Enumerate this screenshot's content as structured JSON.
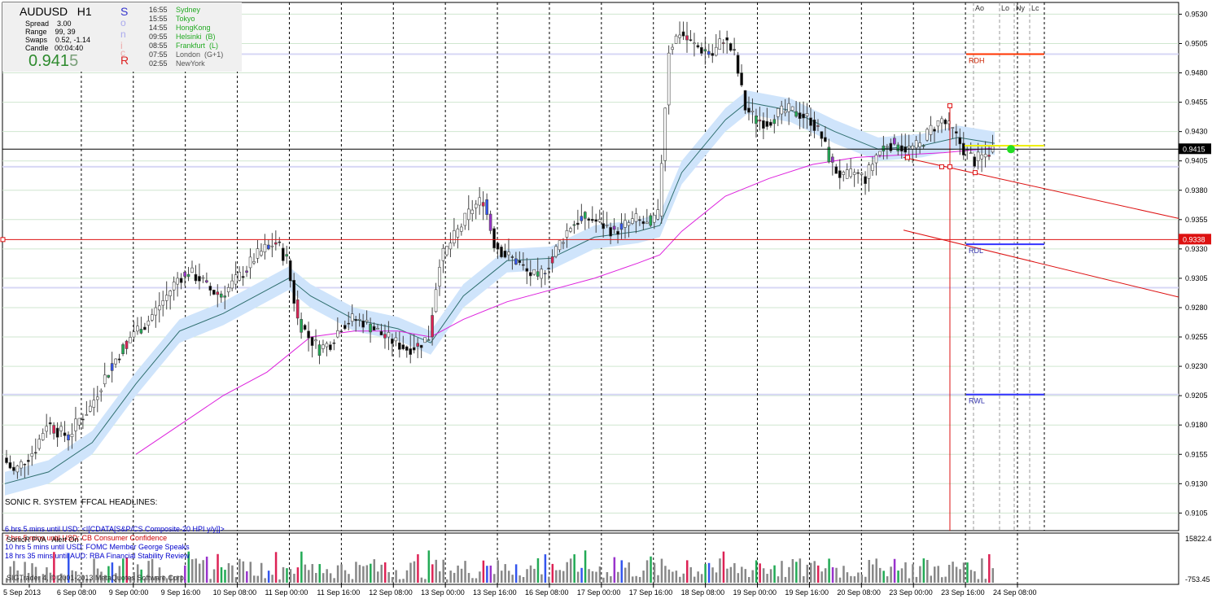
{
  "info_panel": {
    "symbol": "AUDUSD",
    "timeframe": "H1",
    "spread_label": "Spread",
    "spread": "3.00",
    "range_label": "Range",
    "range": "99, 39",
    "swaps_label": "Swaps",
    "swaps": "0.52, -1.14",
    "candle_label": "Candle",
    "candle": "00:04:40",
    "price_main": "0.941",
    "price_tail": "5"
  },
  "sonic_letters": [
    "S",
    "o",
    "n",
    "i",
    "c",
    "R"
  ],
  "sessions": [
    {
      "time": "16:55",
      "name": "Sydney",
      "color": "#22aa22"
    },
    {
      "time": "15:55",
      "name": "Tokyo",
      "color": "#22aa22"
    },
    {
      "time": "14:55",
      "name": "HongKong",
      "color": "#22aa22"
    },
    {
      "time": "09:55",
      "name": "Helsinki  (B)",
      "color": "#22aa22"
    },
    {
      "time": "08:55",
      "name": "Frankfurt  (L)",
      "color": "#22aa22"
    },
    {
      "time": "07:55",
      "name": "London  (G+1)",
      "color": "#555555"
    },
    {
      "time": "02:55",
      "name": "NewYork",
      "color": "#555555"
    }
  ],
  "headlines": {
    "title": "SONIC R. SYSTEM  FFCAL HEADLINES:",
    "items": [
      {
        "text": "6 hrs 5 mins until USD: <![CDATA[S&P/CS Composite-20 HPI y/y]]>",
        "color": "#0000cc"
      },
      {
        "text": "7 hrs 5 mins until USD: CB Consumer Confidence",
        "color": "#cc0000"
      },
      {
        "text": "10 hrs 5 mins until USD: FOMC Member George Speaks",
        "color": "#0000cc"
      },
      {
        "text": "18 hrs 35 mins until AUD: RBA Financial Stability Review",
        "color": "#0000cc"
      }
    ]
  },
  "indicator": {
    "label": "SonicR PVA   Alert On",
    "axis_top": "15822.45",
    "axis_bottom": "-753.45"
  },
  "copyright": "SIGTrader 4, © 2001-2013 MetaQuotes Software Corp.",
  "chart_data": {
    "type": "candlestick",
    "symbol": "AUDUSD",
    "timeframe": "H1",
    "ylim": [
      0.909,
      0.954
    ],
    "y_ticks": [
      "0.9530",
      "0.9505",
      "0.9480",
      "0.9455",
      "0.9430",
      "0.9405",
      "0.9380",
      "0.9355",
      "0.9330",
      "0.9305",
      "0.9280",
      "0.9255",
      "0.9230",
      "0.9205",
      "0.9180",
      "0.9155",
      "0.9130",
      "0.9105"
    ],
    "x_ticks": [
      "5 Sep 2013",
      "6 Sep 08:00",
      "9 Sep 00:00",
      "9 Sep 16:00",
      "10 Sep 08:00",
      "11 Sep 00:00",
      "11 Sep 16:00",
      "12 Sep 08:00",
      "13 Sep 00:00",
      "13 Sep 16:00",
      "16 Sep 08:00",
      "17 Sep 00:00",
      "17 Sep 16:00",
      "18 Sep 08:00",
      "19 Sep 00:00",
      "19 Sep 16:00",
      "20 Sep 08:00",
      "23 Sep 00:00",
      "23 Sep 16:00",
      "24 Sep 08:00"
    ],
    "current_price": 0.9415,
    "current_price_label": "0.9415",
    "hline_price": 0.9338,
    "hline_label": "0.9338",
    "levels": [
      {
        "label": "RDH",
        "value": 0.9496,
        "color": "#ff3300"
      },
      {
        "label": "RDL",
        "value": 0.9334,
        "color": "#3333ff"
      },
      {
        "label": "RWL",
        "value": 0.9206,
        "color": "#3333ff"
      }
    ],
    "yellow_level": 0.9418,
    "session_labels": [
      "Ao",
      "Lo",
      "Ny",
      "Lc"
    ],
    "price_path": [
      [
        0,
        0.9152
      ],
      [
        3,
        0.914
      ],
      [
        6,
        0.915
      ],
      [
        9,
        0.916
      ],
      [
        12,
        0.9182
      ],
      [
        15,
        0.9175
      ],
      [
        18,
        0.917
      ],
      [
        21,
        0.9185
      ],
      [
        24,
        0.9195
      ],
      [
        27,
        0.9215
      ],
      [
        30,
        0.9232
      ],
      [
        33,
        0.9245
      ],
      [
        36,
        0.926
      ],
      [
        39,
        0.9265
      ],
      [
        42,
        0.9278
      ],
      [
        45,
        0.929
      ],
      [
        48,
        0.9305
      ],
      [
        51,
        0.931
      ],
      [
        54,
        0.9305
      ],
      [
        57,
        0.9295
      ],
      [
        60,
        0.929
      ],
      [
        63,
        0.93
      ],
      [
        66,
        0.931
      ],
      [
        69,
        0.9322
      ],
      [
        72,
        0.933
      ],
      [
        75,
        0.9336
      ],
      [
        78,
        0.932
      ],
      [
        81,
        0.927
      ],
      [
        84,
        0.9255
      ],
      [
        87,
        0.9245
      ],
      [
        90,
        0.925
      ],
      [
        93,
        0.9265
      ],
      [
        96,
        0.927
      ],
      [
        99,
        0.9268
      ],
      [
        102,
        0.9262
      ],
      [
        105,
        0.9255
      ],
      [
        108,
        0.925
      ],
      [
        111,
        0.9245
      ],
      [
        114,
        0.9248
      ],
      [
        117,
        0.9255
      ],
      [
        120,
        0.932
      ],
      [
        123,
        0.9335
      ],
      [
        126,
        0.935
      ],
      [
        129,
        0.9365
      ],
      [
        132,
        0.9372
      ],
      [
        135,
        0.9335
      ],
      [
        138,
        0.9325
      ],
      [
        141,
        0.932
      ],
      [
        144,
        0.931
      ],
      [
        147,
        0.9305
      ],
      [
        150,
        0.9318
      ],
      [
        153,
        0.9335
      ],
      [
        156,
        0.935
      ],
      [
        159,
        0.9356
      ],
      [
        162,
        0.9355
      ],
      [
        165,
        0.935
      ],
      [
        168,
        0.9345
      ],
      [
        171,
        0.935
      ],
      [
        174,
        0.9355
      ],
      [
        177,
        0.935
      ],
      [
        180,
        0.9358
      ],
      [
        183,
        0.95
      ],
      [
        186,
        0.9515
      ],
      [
        189,
        0.9505
      ],
      [
        192,
        0.95
      ],
      [
        195,
        0.9495
      ],
      [
        198,
        0.951
      ],
      [
        201,
        0.9495
      ],
      [
        204,
        0.945
      ],
      [
        207,
        0.944
      ],
      [
        210,
        0.9438
      ],
      [
        213,
        0.9445
      ],
      [
        216,
        0.9448
      ],
      [
        219,
        0.9445
      ],
      [
        222,
        0.944
      ],
      [
        225,
        0.9425
      ],
      [
        228,
        0.94
      ],
      [
        231,
        0.939
      ],
      [
        234,
        0.9395
      ],
      [
        237,
        0.939
      ],
      [
        240,
        0.941
      ],
      [
        243,
        0.942
      ],
      [
        246,
        0.9418
      ],
      [
        249,
        0.9415
      ],
      [
        252,
        0.9418
      ],
      [
        255,
        0.9432
      ],
      [
        258,
        0.944
      ],
      [
        261,
        0.943
      ],
      [
        264,
        0.9415
      ],
      [
        267,
        0.9405
      ],
      [
        270,
        0.941
      ],
      [
        272,
        0.9415
      ]
    ],
    "ema_center": [
      [
        0,
        0.913
      ],
      [
        12,
        0.914
      ],
      [
        24,
        0.9165
      ],
      [
        36,
        0.9215
      ],
      [
        48,
        0.926
      ],
      [
        60,
        0.9275
      ],
      [
        72,
        0.9295
      ],
      [
        78,
        0.9305
      ],
      [
        84,
        0.929
      ],
      [
        96,
        0.927
      ],
      [
        108,
        0.9262
      ],
      [
        117,
        0.925
      ],
      [
        126,
        0.929
      ],
      [
        138,
        0.932
      ],
      [
        150,
        0.9322
      ],
      [
        162,
        0.934
      ],
      [
        174,
        0.9345
      ],
      [
        180,
        0.935
      ],
      [
        186,
        0.9395
      ],
      [
        198,
        0.944
      ],
      [
        204,
        0.9455
      ],
      [
        216,
        0.9448
      ],
      [
        228,
        0.943
      ],
      [
        240,
        0.9415
      ],
      [
        252,
        0.9418
      ],
      [
        262,
        0.9425
      ],
      [
        272,
        0.942
      ]
    ],
    "ema_slow": [
      [
        36,
        0.9155
      ],
      [
        48,
        0.918
      ],
      [
        60,
        0.9205
      ],
      [
        72,
        0.9225
      ],
      [
        84,
        0.9255
      ],
      [
        96,
        0.926
      ],
      [
        108,
        0.926
      ],
      [
        117,
        0.9255
      ],
      [
        126,
        0.927
      ],
      [
        138,
        0.9285
      ],
      [
        150,
        0.9295
      ],
      [
        162,
        0.9305
      ],
      [
        174,
        0.9318
      ],
      [
        180,
        0.9325
      ],
      [
        186,
        0.9345
      ],
      [
        198,
        0.9375
      ],
      [
        210,
        0.939
      ],
      [
        222,
        0.9402
      ],
      [
        234,
        0.9408
      ],
      [
        246,
        0.941
      ],
      [
        258,
        0.9412
      ],
      [
        272,
        0.9416
      ]
    ]
  }
}
